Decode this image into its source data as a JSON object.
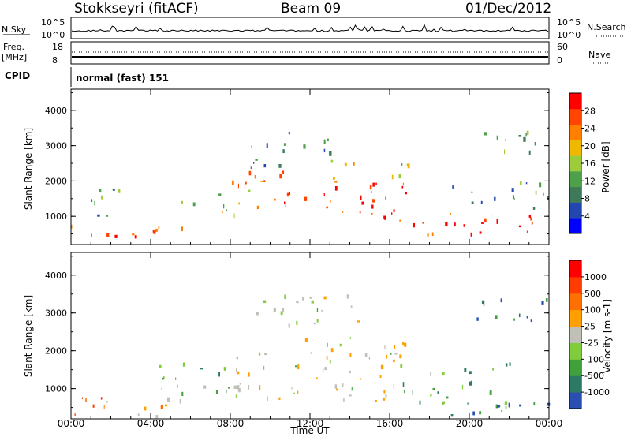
{
  "header": {
    "station": "Stokkseyri (fitACF)",
    "beam": "Beam 09",
    "date": "01/Dec/2012"
  },
  "top_panels": {
    "nsky_label": "N.Sky",
    "nsky_ticks": [
      "10^5",
      "10^0"
    ],
    "nsearch_label": "N.Search",
    "nsearch_ticks": [
      "10^5",
      "10^0"
    ],
    "freq_label_line1": "Freq.",
    "freq_label_line2": "[MHz]",
    "freq_ticks": [
      "18",
      "8"
    ],
    "nave_label": "Nave",
    "nave_ticks": [
      "60",
      "0"
    ],
    "cpid_label": "CPID",
    "cpid_value": "normal (fast) 151"
  },
  "colors": {
    "power_scale": [
      "#0000ff",
      "#2346b0",
      "#3d7a5a",
      "#4fa04a",
      "#9ccc3c",
      "#f0b800",
      "#ff8000",
      "#ff4500",
      "#ff0000"
    ],
    "velocity_scale": [
      "#2a4fb3",
      "#2c7a63",
      "#3fa03c",
      "#80cc3a",
      "#c0c0b8",
      "#ffa000",
      "#ff7000",
      "#ff3c00",
      "#ff0000"
    ]
  },
  "chart_data": [
    {
      "type": "heatmap",
      "quantity": "Power",
      "ylabel": "Slant Range [km]",
      "ylim": [
        200,
        4600
      ],
      "yticks": [
        "4000",
        "3000",
        "2000",
        "1000"
      ],
      "colorbar_label": "Power [dB]",
      "colorbar_ticks": [
        "28",
        "24",
        "20",
        "16",
        "12",
        "8",
        "4"
      ],
      "xlim_hours": [
        0,
        24
      ],
      "echo_regions": [
        {
          "t_start": 0.0,
          "t_end": 6.0,
          "r_low": 300,
          "r_high": 800,
          "level": 0.85
        },
        {
          "t_start": 0.5,
          "t_end": 2.5,
          "r_low": 900,
          "r_high": 1900,
          "level": 0.35
        },
        {
          "t_start": 5.5,
          "t_end": 8.5,
          "r_low": 1000,
          "r_high": 1700,
          "level": 0.55
        },
        {
          "t_start": 8.0,
          "t_end": 11.0,
          "r_low": 1100,
          "r_high": 2300,
          "level": 0.65
        },
        {
          "t_start": 9.0,
          "t_end": 13.0,
          "r_low": 2400,
          "r_high": 3400,
          "level": 0.3
        },
        {
          "t_start": 10.5,
          "t_end": 17.0,
          "r_low": 900,
          "r_high": 2000,
          "level": 0.9
        },
        {
          "t_start": 13.0,
          "t_end": 17.5,
          "r_low": 2000,
          "r_high": 2600,
          "level": 0.55
        },
        {
          "t_start": 17.0,
          "t_end": 24.0,
          "r_low": 400,
          "r_high": 1100,
          "level": 0.9
        },
        {
          "t_start": 19.0,
          "t_end": 24.0,
          "r_low": 1200,
          "r_high": 2000,
          "level": 0.35
        },
        {
          "t_start": 20.0,
          "t_end": 24.0,
          "r_low": 2800,
          "r_high": 3500,
          "level": 0.4
        }
      ]
    },
    {
      "type": "heatmap",
      "quantity": "Velocity",
      "ylabel": "Slant Range [km]",
      "ylim": [
        200,
        4600
      ],
      "yticks": [
        "4000",
        "3000",
        "2000",
        "1000"
      ],
      "colorbar_label": "Velocity [m s-1]",
      "colorbar_ticks": [
        "1000",
        "500",
        "100",
        "25",
        "-25",
        "-100",
        "-500",
        "-1000"
      ],
      "xlim_hours": [
        0,
        24
      ],
      "xticks": [
        "00:00",
        "04:00",
        "08:00",
        "12:00",
        "16:00",
        "20:00",
        "00:00"
      ],
      "xlabel": "Time UT",
      "echo_regions": [
        {
          "t_start": 0.0,
          "t_end": 2.0,
          "r_low": 300,
          "r_high": 1000,
          "level": 0.8
        },
        {
          "t_start": 1.5,
          "t_end": 6.0,
          "r_low": 300,
          "r_high": 800,
          "level": 0.55
        },
        {
          "t_start": 4.0,
          "t_end": 8.0,
          "r_low": 900,
          "r_high": 1900,
          "level": 0.3
        },
        {
          "t_start": 8.0,
          "t_end": 17.0,
          "r_low": 700,
          "r_high": 2400,
          "level": 0.5
        },
        {
          "t_start": 9.0,
          "t_end": 15.0,
          "r_low": 2600,
          "r_high": 3500,
          "level": 0.5
        },
        {
          "t_start": 16.5,
          "t_end": 22.0,
          "r_low": 400,
          "r_high": 1700,
          "level": 0.3
        },
        {
          "t_start": 19.0,
          "t_end": 24.0,
          "r_low": 300,
          "r_high": 700,
          "level": 0.15
        },
        {
          "t_start": 20.0,
          "t_end": 24.0,
          "r_low": 2800,
          "r_high": 3500,
          "level": 0.2
        }
      ]
    }
  ]
}
